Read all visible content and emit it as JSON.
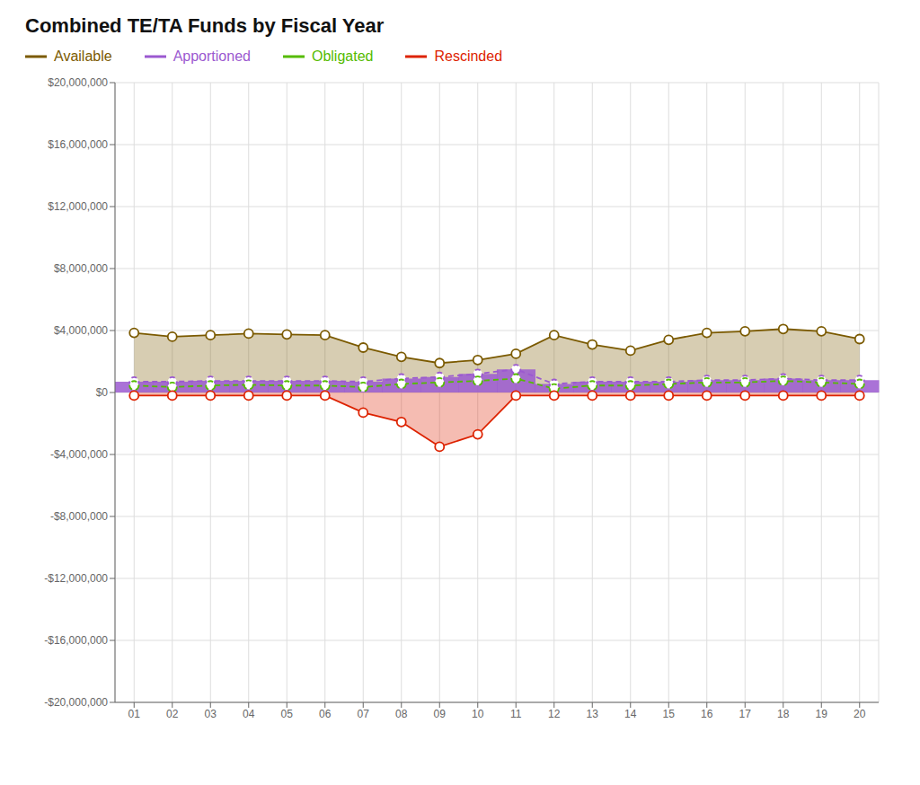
{
  "chart_data": {
    "type": "line",
    "title": "Combined TE/TA Funds by Fiscal Year",
    "categories": [
      "01",
      "02",
      "03",
      "04",
      "05",
      "06",
      "07",
      "08",
      "09",
      "10",
      "11",
      "12",
      "13",
      "14",
      "15",
      "16",
      "17",
      "18",
      "19",
      "20"
    ],
    "series": [
      {
        "name": "Available",
        "type": "area",
        "color": "#7B5A00",
        "line_style": "solid",
        "marker": "circle",
        "values": [
          3850000,
          3600000,
          3700000,
          3800000,
          3750000,
          3700000,
          2900000,
          2300000,
          1900000,
          2100000,
          2500000,
          3700000,
          3100000,
          2700000,
          3400000,
          3850000,
          3950000,
          4100000,
          3950000,
          3450000
        ]
      },
      {
        "name": "Apportioned",
        "type": "bar",
        "color": "#9B59D0",
        "line_style": "dashed",
        "marker": "circle",
        "values": [
          700000,
          700000,
          750000,
          750000,
          750000,
          750000,
          700000,
          900000,
          1000000,
          1200000,
          1500000,
          550000,
          700000,
          700000,
          700000,
          800000,
          800000,
          900000,
          800000,
          800000
        ]
      },
      {
        "name": "Obligated",
        "type": "line",
        "color": "#55BB00",
        "line_style": "dashed",
        "marker": "circle",
        "values": [
          450000,
          350000,
          450000,
          500000,
          450000,
          450000,
          350000,
          550000,
          650000,
          750000,
          900000,
          250000,
          450000,
          450000,
          550000,
          650000,
          650000,
          750000,
          650000,
          550000
        ]
      },
      {
        "name": "Rescinded",
        "type": "area",
        "color": "#DD2200",
        "line_style": "solid",
        "marker": "circle",
        "values": [
          -200000,
          -200000,
          -200000,
          -200000,
          -200000,
          -200000,
          -1300000,
          -1900000,
          -3500000,
          -2700000,
          -200000,
          -200000,
          -200000,
          -200000,
          -200000,
          -200000,
          -200000,
          -200000,
          -200000,
          -200000
        ]
      }
    ],
    "ylim": [
      -20000000,
      20000000
    ],
    "yticks": [
      {
        "value": -20000000,
        "label": "-$20,000,000"
      },
      {
        "value": -16000000,
        "label": "-$16,000,000"
      },
      {
        "value": -12000000,
        "label": "-$12,000,000"
      },
      {
        "value": -8000000,
        "label": "-$8,000,000"
      },
      {
        "value": -4000000,
        "label": "-$4,000,000"
      },
      {
        "value": 0,
        "label": "$0"
      },
      {
        "value": 4000000,
        "label": "$4,000,000"
      },
      {
        "value": 8000000,
        "label": "$8,000,000"
      },
      {
        "value": 12000000,
        "label": "$12,000,000"
      },
      {
        "value": 16000000,
        "label": "$16,000,000"
      },
      {
        "value": 20000000,
        "label": "$20,000,000"
      }
    ],
    "grid": true,
    "legend": "top"
  }
}
